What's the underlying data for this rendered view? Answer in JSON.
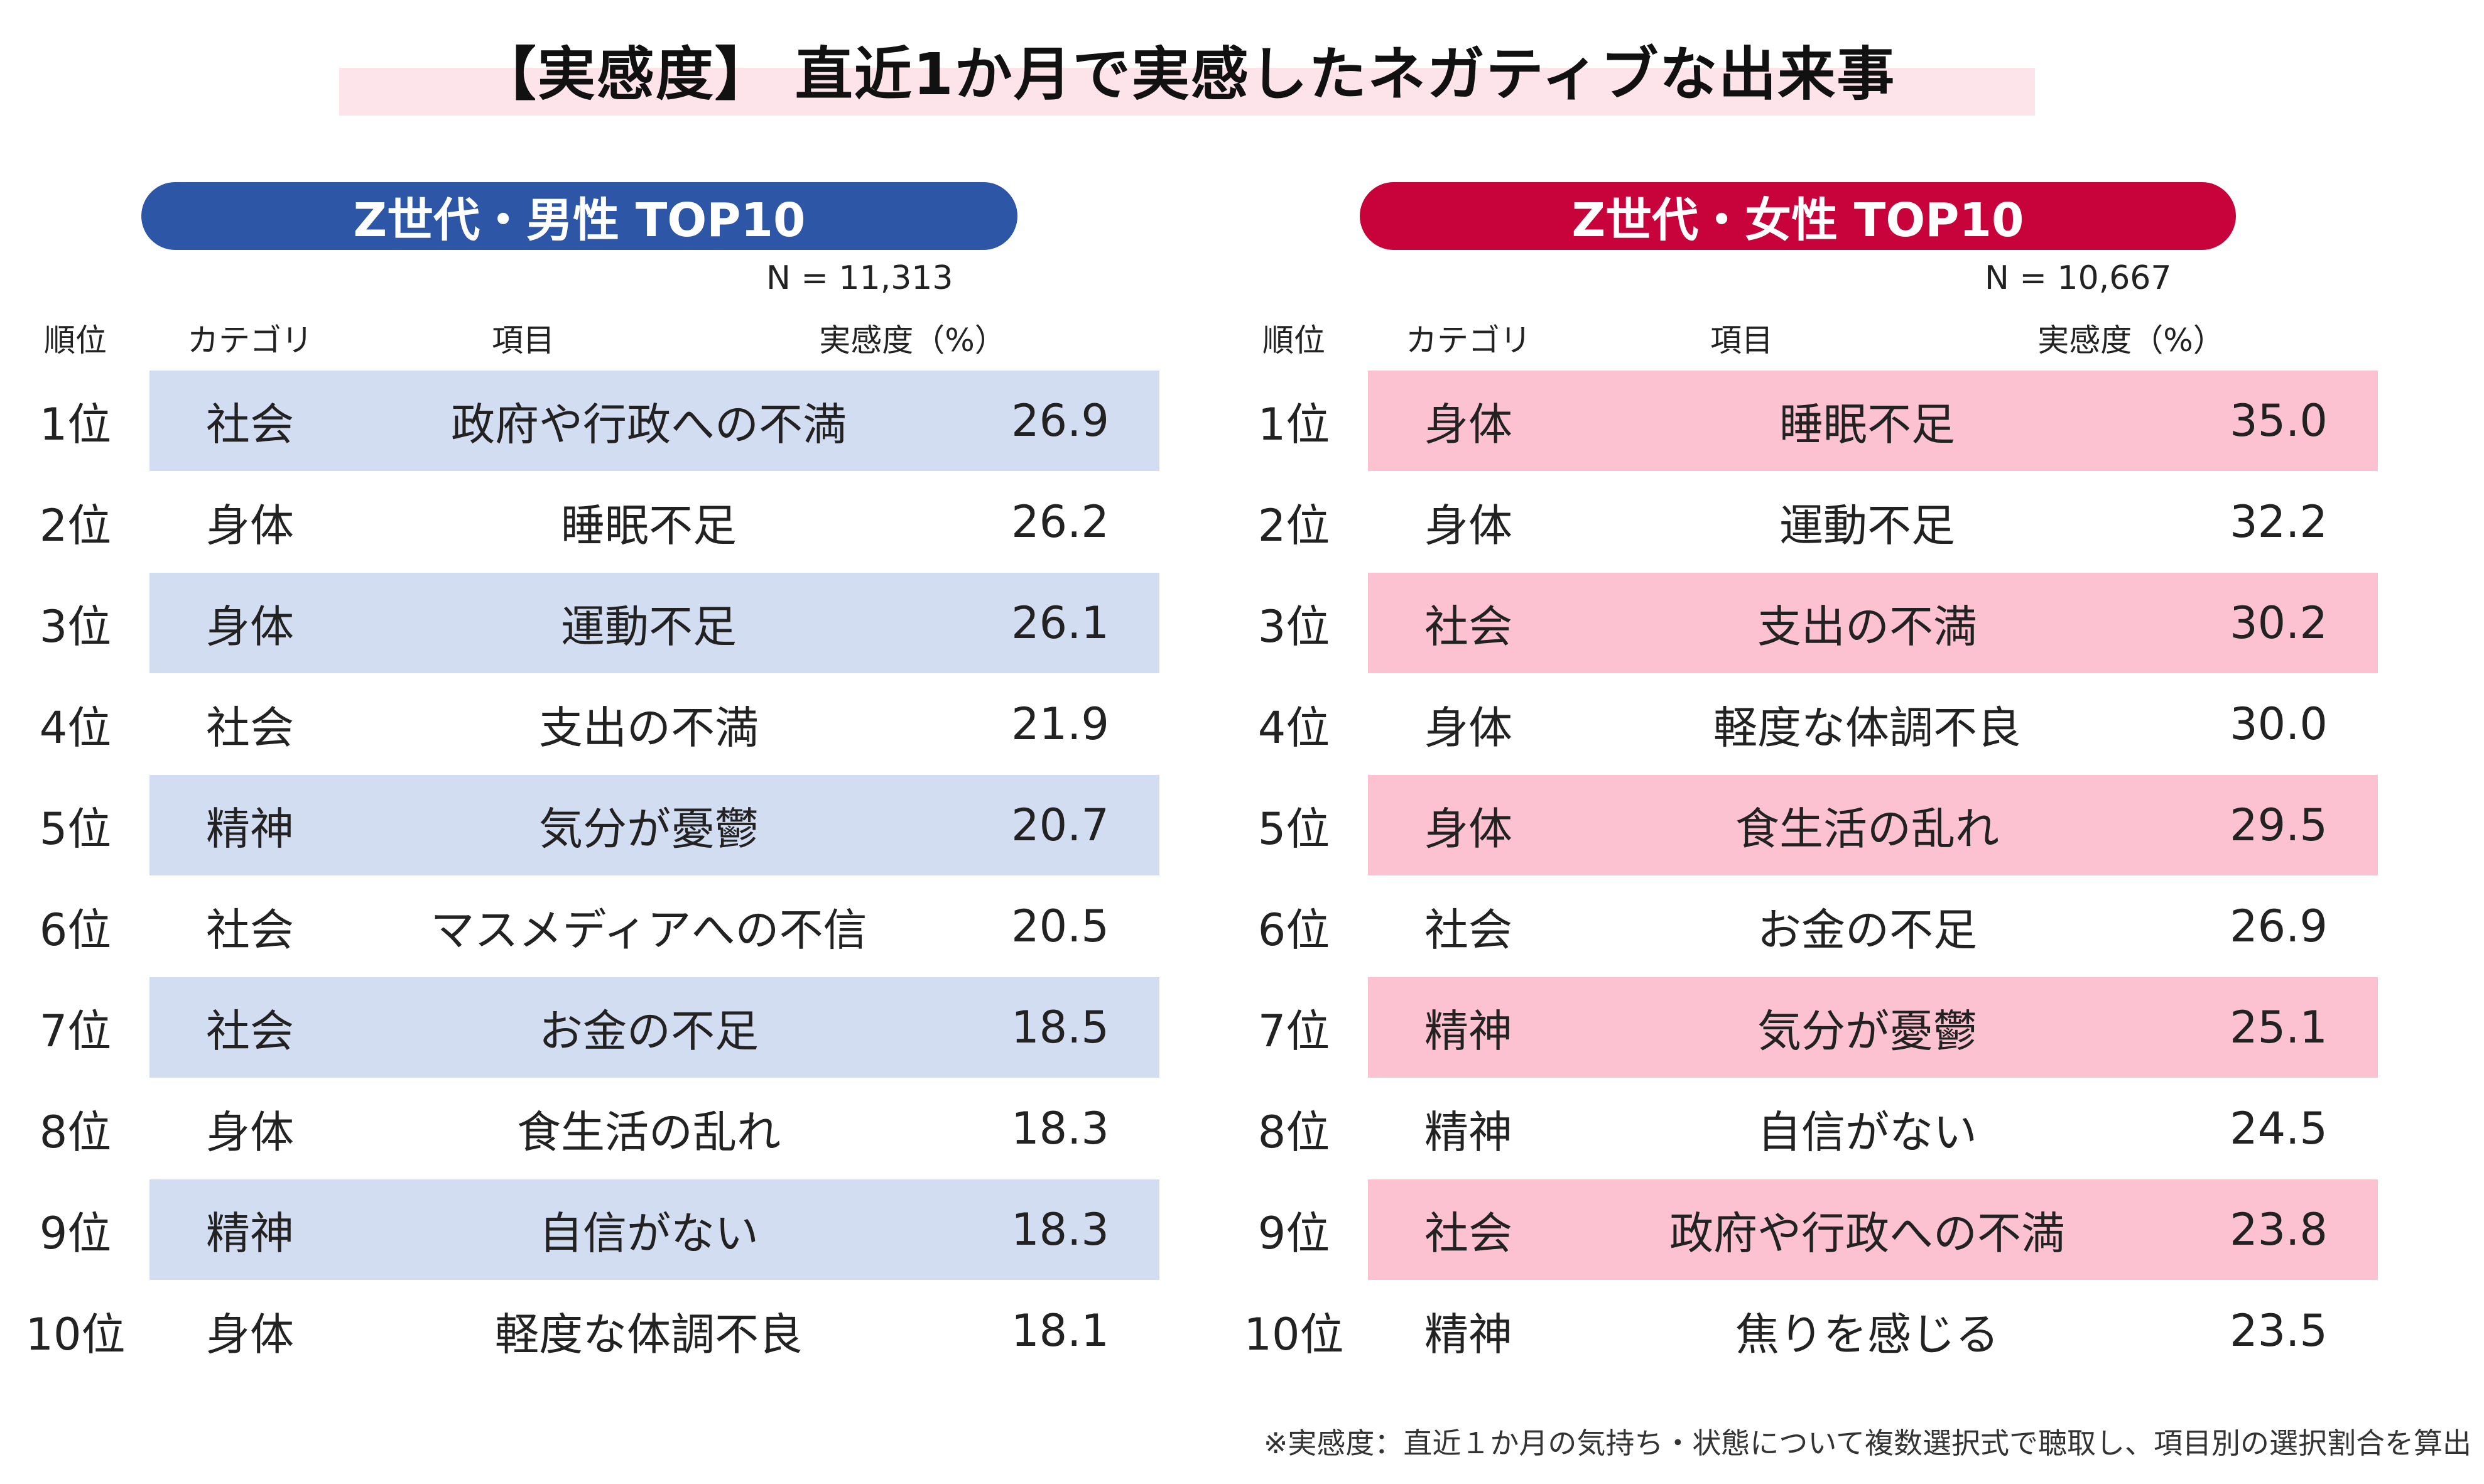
{
  "title": "【実感度】 直近1か月で実感したネガティブな出来事",
  "colors": {
    "male_accent": "#2e56a6",
    "male_row": "#d3ddf1",
    "female_accent": "#c8023a",
    "female_row": "#fdc2d1",
    "title_band": "#fde3ea"
  },
  "headers": {
    "rank": "順位",
    "category": "カテゴリ",
    "item": "項目",
    "value": "実感度（%）"
  },
  "chart_data": [
    {
      "type": "table",
      "title": "Z世代・男性 TOP10",
      "sample": "N = 11,313",
      "rows": [
        {
          "rank": "1位",
          "category": "社会",
          "item": "政府や行政への不満",
          "value": "26.9"
        },
        {
          "rank": "2位",
          "category": "身体",
          "item": "睡眠不足",
          "value": "26.2"
        },
        {
          "rank": "3位",
          "category": "身体",
          "item": "運動不足",
          "value": "26.1"
        },
        {
          "rank": "4位",
          "category": "社会",
          "item": "支出の不満",
          "value": "21.9"
        },
        {
          "rank": "5位",
          "category": "精神",
          "item": "気分が憂鬱",
          "value": "20.7"
        },
        {
          "rank": "6位",
          "category": "社会",
          "item": "マスメディアへの不信",
          "value": "20.5"
        },
        {
          "rank": "7位",
          "category": "社会",
          "item": "お金の不足",
          "value": "18.5"
        },
        {
          "rank": "8位",
          "category": "身体",
          "item": "食生活の乱れ",
          "value": "18.3"
        },
        {
          "rank": "9位",
          "category": "精神",
          "item": "自信がない",
          "value": "18.3"
        },
        {
          "rank": "10位",
          "category": "身体",
          "item": "軽度な体調不良",
          "value": "18.1"
        }
      ]
    },
    {
      "type": "table",
      "title": "Z世代・女性 TOP10",
      "sample": "N = 10,667",
      "rows": [
        {
          "rank": "1位",
          "category": "身体",
          "item": "睡眠不足",
          "value": "35.0"
        },
        {
          "rank": "2位",
          "category": "身体",
          "item": "運動不足",
          "value": "32.2"
        },
        {
          "rank": "3位",
          "category": "社会",
          "item": "支出の不満",
          "value": "30.2"
        },
        {
          "rank": "4位",
          "category": "身体",
          "item": "軽度な体調不良",
          "value": "30.0"
        },
        {
          "rank": "5位",
          "category": "身体",
          "item": "食生活の乱れ",
          "value": "29.5"
        },
        {
          "rank": "6位",
          "category": "社会",
          "item": "お金の不足",
          "value": "26.9"
        },
        {
          "rank": "7位",
          "category": "精神",
          "item": "気分が憂鬱",
          "value": "25.1"
        },
        {
          "rank": "8位",
          "category": "精神",
          "item": "自信がない",
          "value": "24.5"
        },
        {
          "rank": "9位",
          "category": "社会",
          "item": "政府や行政への不満",
          "value": "23.8"
        },
        {
          "rank": "10位",
          "category": "精神",
          "item": "焦りを感じる",
          "value": "23.5"
        }
      ]
    }
  ],
  "footnote": "※実感度：直近１か月の気持ち・状態について複数選択式で聴取し、項目別の選択割合を算出"
}
